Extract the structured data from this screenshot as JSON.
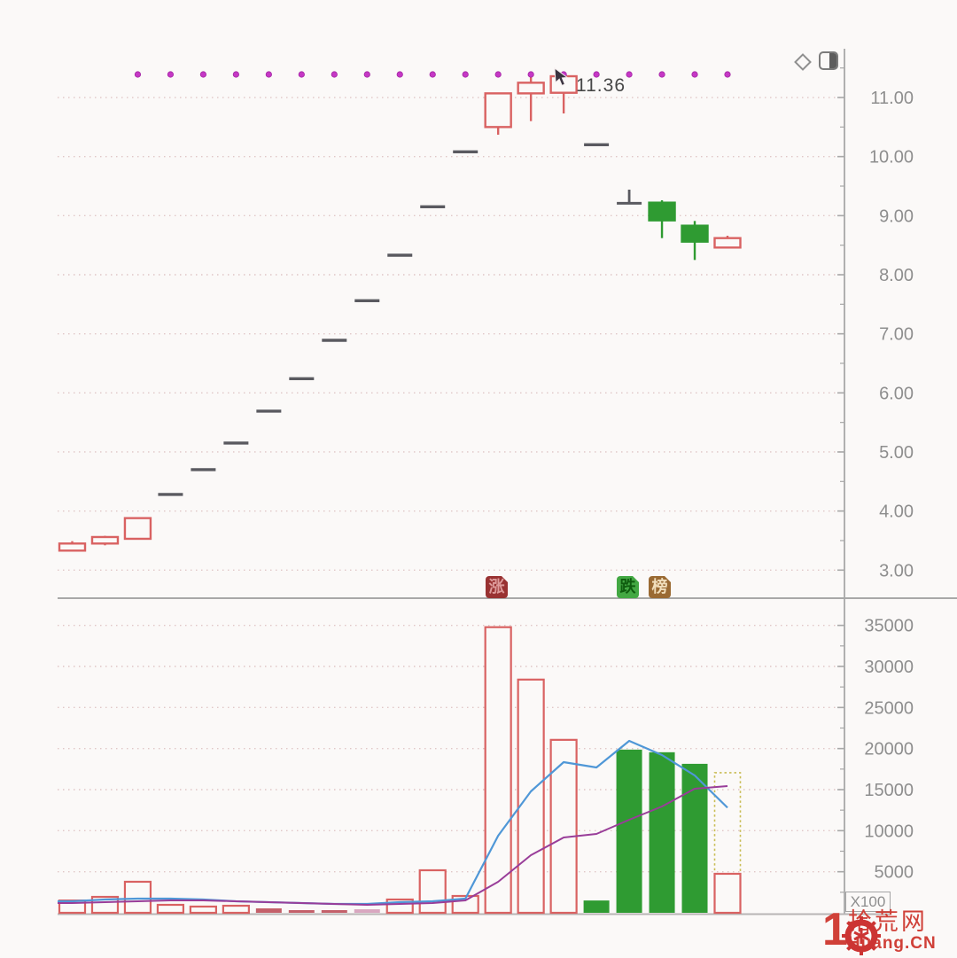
{
  "toolbar": {
    "icons": [
      "diamond-icon",
      "panel-split-icon"
    ]
  },
  "price_pane": {
    "high_annotation_text": "11.36",
    "y_axis_unit": "price",
    "badges": {
      "rise": {
        "label": "涨",
        "bg": "#993232",
        "fg": "#dd9a9a"
      },
      "fall": {
        "label": "跌",
        "bg": "#43a843",
        "fg": "#0f5c0f"
      },
      "board": {
        "label": "榜",
        "bg": "#9a6a33",
        "fg": "#f0ddba"
      }
    }
  },
  "volume_pane": {
    "unit_label": "X100"
  },
  "watermark": {
    "logo": "1",
    "site": "拾荒网",
    "domain": "Huang.CN",
    "color": "#d04038"
  },
  "chart_data": {
    "type": "candlestick+volume",
    "title": "",
    "price_axis": {
      "min": 3.0,
      "max": 11.5,
      "ticks": [
        {
          "v": 11,
          "label": "11.00"
        },
        {
          "v": 10,
          "label": "10.00"
        },
        {
          "v": 9,
          "label": "9.00"
        },
        {
          "v": 8,
          "label": "8.00"
        },
        {
          "v": 7,
          "label": "7.00"
        },
        {
          "v": 6,
          "label": "6.00"
        },
        {
          "v": 5,
          "label": "5.00"
        },
        {
          "v": 4,
          "label": "4.00"
        },
        {
          "v": 3,
          "label": "3.00"
        }
      ]
    },
    "volume_axis": {
      "min": 0,
      "max": 37000,
      "unit": "X100",
      "ticks": [
        {
          "v": 35000,
          "label": "35000"
        },
        {
          "v": 30000,
          "label": "30000"
        },
        {
          "v": 25000,
          "label": "25000"
        },
        {
          "v": 20000,
          "label": "20000"
        },
        {
          "v": 15000,
          "label": "15000"
        },
        {
          "v": 10000,
          "label": "10000"
        },
        {
          "v": 5000,
          "label": "5000"
        }
      ]
    },
    "candles": [
      {
        "o": 3.33,
        "h": 3.49,
        "l": 3.33,
        "c": 3.45,
        "k": "up"
      },
      {
        "o": 3.45,
        "h": 3.58,
        "l": 3.42,
        "c": 3.56,
        "k": "up"
      },
      {
        "o": 3.53,
        "h": 3.88,
        "l": 3.53,
        "c": 3.88,
        "k": "up"
      },
      {
        "p": 4.28,
        "k": "flat"
      },
      {
        "p": 4.7,
        "k": "flat"
      },
      {
        "p": 5.15,
        "k": "flat"
      },
      {
        "p": 5.69,
        "k": "flat"
      },
      {
        "p": 6.24,
        "k": "flat"
      },
      {
        "p": 6.89,
        "k": "flat"
      },
      {
        "p": 7.56,
        "k": "flat"
      },
      {
        "p": 8.33,
        "k": "flat"
      },
      {
        "p": 9.15,
        "k": "flat"
      },
      {
        "p": 10.08,
        "k": "flat"
      },
      {
        "o": 10.5,
        "h": 11.07,
        "l": 10.37,
        "c": 11.07,
        "k": "up"
      },
      {
        "o": 11.07,
        "h": 11.43,
        "l": 10.6,
        "c": 11.25,
        "k": "up"
      },
      {
        "o": 11.08,
        "h": 11.36,
        "l": 10.73,
        "c": 11.36,
        "k": "up"
      },
      {
        "p": 10.2,
        "k": "flat"
      },
      {
        "o": 9.21,
        "h": 9.44,
        "l": 9.21,
        "c": 9.21,
        "k": "tee"
      },
      {
        "o": 9.22,
        "h": 9.26,
        "l": 8.62,
        "c": 8.92,
        "k": "down"
      },
      {
        "o": 8.83,
        "h": 8.91,
        "l": 8.25,
        "c": 8.56,
        "k": "down"
      },
      {
        "o": 8.46,
        "h": 8.66,
        "l": 8.46,
        "c": 8.62,
        "k": "up"
      }
    ],
    "volumes": [
      {
        "v": 1500,
        "style": "red_hollow"
      },
      {
        "v": 1940,
        "style": "red_hollow"
      },
      {
        "v": 3780,
        "style": "red_hollow"
      },
      {
        "v": 970,
        "style": "red_hollow"
      },
      {
        "v": 760,
        "style": "red_hollow"
      },
      {
        "v": 860,
        "style": "red_hollow"
      },
      {
        "v": 540,
        "style": "red_solid"
      },
      {
        "v": 320,
        "style": "red_solid"
      },
      {
        "v": 220,
        "style": "red_solid"
      },
      {
        "v": 430,
        "style": "pink_solid"
      },
      {
        "v": 1620,
        "style": "red_hollow"
      },
      {
        "v": 5180,
        "style": "red_hollow"
      },
      {
        "v": 2050,
        "style": "red_hollow"
      },
      {
        "v": 34780,
        "style": "red_hollow"
      },
      {
        "v": 28400,
        "style": "red_hollow"
      },
      {
        "v": 21060,
        "style": "red_hollow"
      },
      {
        "v": 1500,
        "style": "green_solid"
      },
      {
        "v": 19870,
        "style": "green_solid"
      },
      {
        "v": 19550,
        "style": "green_solid"
      },
      {
        "v": 18140,
        "style": "green_solid"
      },
      {
        "v": 4750,
        "style": "red_hollow",
        "ghost_outline_v": 17060
      }
    ],
    "vol_ma5": [
      1400,
      1620,
      1730,
      1730,
      1620,
      1400,
      1300,
      1190,
      1080,
      1080,
      1300,
      1400,
      1730,
      9390,
      14780,
      18340,
      17700,
      20940,
      19210,
      16730,
      12800
    ],
    "vol_ma10": [
      1190,
      1300,
      1400,
      1510,
      1510,
      1400,
      1300,
      1190,
      1080,
      970,
      1080,
      1190,
      1510,
      3780,
      7010,
      9170,
      9600,
      11330,
      12950,
      15110,
      15430
    ],
    "limit_up_marks": {
      "from_candle": 3,
      "to_candle": 21,
      "marker": "magenta-dot"
    },
    "high_annotation": {
      "candle_index": 16,
      "text": "11.36"
    },
    "legend_position": "none",
    "grid": "dotted-horizontal",
    "colors": {
      "up": "#d96262",
      "down": "#2f9b32",
      "flat": "#5a5a60",
      "dot": "#c538c5",
      "ma5": "#4f97d7",
      "ma10": "#993d99",
      "grid": "#e0c6c6",
      "axis": "#a8a8a8",
      "label": "#8e8e8e",
      "ghost": "#c9bd55",
      "bg": "#fbf9f8",
      "red_solid": "#c4606a",
      "pink_solid": "#d9a7c0"
    }
  }
}
